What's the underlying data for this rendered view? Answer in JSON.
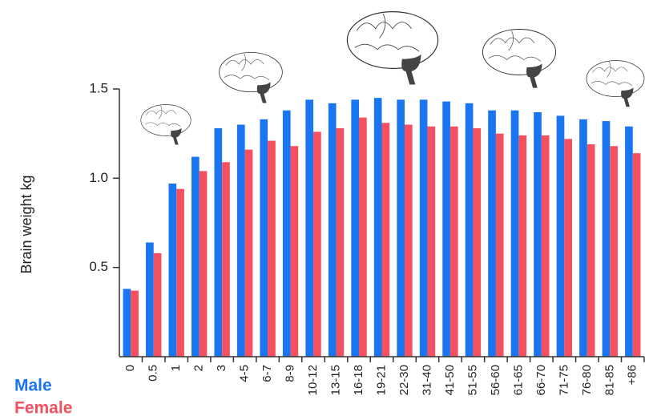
{
  "chart_data": {
    "type": "bar",
    "y_label": "Brain weight kg",
    "categories": [
      "0",
      "0.5",
      "1",
      "2",
      "3",
      "4-5",
      "6-7",
      "8-9",
      "10-12",
      "13-15",
      "16-18",
      "19-21",
      "22-30",
      "31-40",
      "41-50",
      "51-55",
      "56-60",
      "61-65",
      "66-70",
      "71-75",
      "76-80",
      "81-85",
      "+86"
    ],
    "series": [
      {
        "name": "Male",
        "color": "#1a75f0",
        "values": [
          0.38,
          0.64,
          0.97,
          1.12,
          1.28,
          1.3,
          1.33,
          1.38,
          1.44,
          1.42,
          1.44,
          1.45,
          1.44,
          1.44,
          1.43,
          1.42,
          1.38,
          1.38,
          1.37,
          1.35,
          1.33,
          1.32,
          1.29
        ]
      },
      {
        "name": "Female",
        "color": "#f5505f",
        "values": [
          0.37,
          0.58,
          0.94,
          1.04,
          1.09,
          1.16,
          1.21,
          1.18,
          1.26,
          1.28,
          1.34,
          1.31,
          1.3,
          1.29,
          1.29,
          1.28,
          1.25,
          1.24,
          1.24,
          1.22,
          1.19,
          1.18,
          1.14
        ]
      }
    ],
    "ylim": [
      0,
      1.5
    ],
    "yticks": [
      0.5,
      {
        "value": 1,
        "label": "1.0"
      },
      1.5
    ],
    "legend": "bottom-left"
  }
}
